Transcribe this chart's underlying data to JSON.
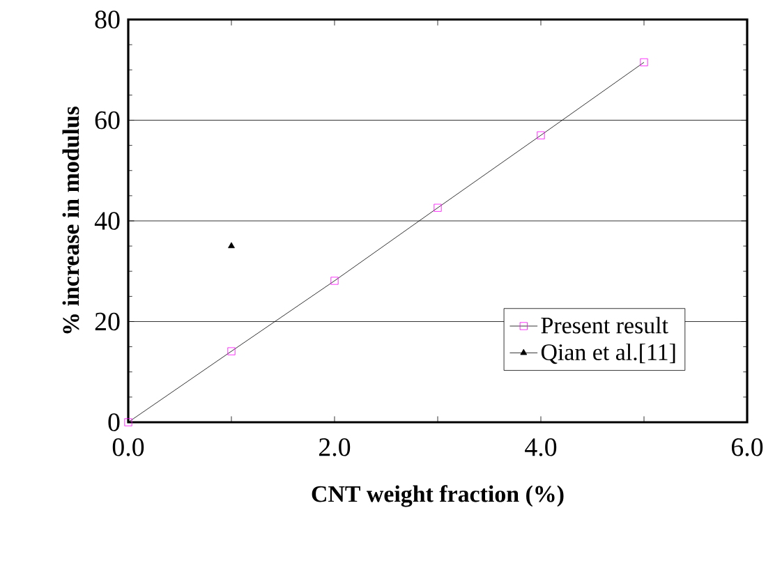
{
  "chart_data": {
    "type": "line",
    "xlabel": "CNT weight fraction (%)",
    "ylabel": "% increase in modulus",
    "xlim": [
      0,
      6
    ],
    "ylim": [
      0,
      80
    ],
    "xticks": [
      {
        "value": 0,
        "label": "0.0"
      },
      {
        "value": 1,
        "label": null
      },
      {
        "value": 2,
        "label": "2.0"
      },
      {
        "value": 3,
        "label": null
      },
      {
        "value": 4,
        "label": "4.0"
      },
      {
        "value": 5,
        "label": null
      },
      {
        "value": 6,
        "label": "6.0"
      }
    ],
    "yticks": [
      0,
      20,
      40,
      60,
      80
    ],
    "grid": "y",
    "legend": "bottom right",
    "series": [
      {
        "name": "Present result",
        "marker": "square",
        "color": "#000000",
        "colors": [
          "#ff00ff",
          "#ff00ff",
          "#ff00ff",
          "#ff00ff",
          "#ff00ff",
          "#ff00ff"
        ],
        "x": [
          0,
          1,
          2,
          3,
          4,
          5
        ],
        "values": [
          0,
          14.1,
          28.1,
          42.6,
          57.0,
          71.5
        ]
      },
      {
        "name": "Qian et al.[11]",
        "type": "scatter",
        "marker": "triangle",
        "color": "#000000",
        "x": [
          1
        ],
        "values": [
          35
        ]
      }
    ]
  }
}
